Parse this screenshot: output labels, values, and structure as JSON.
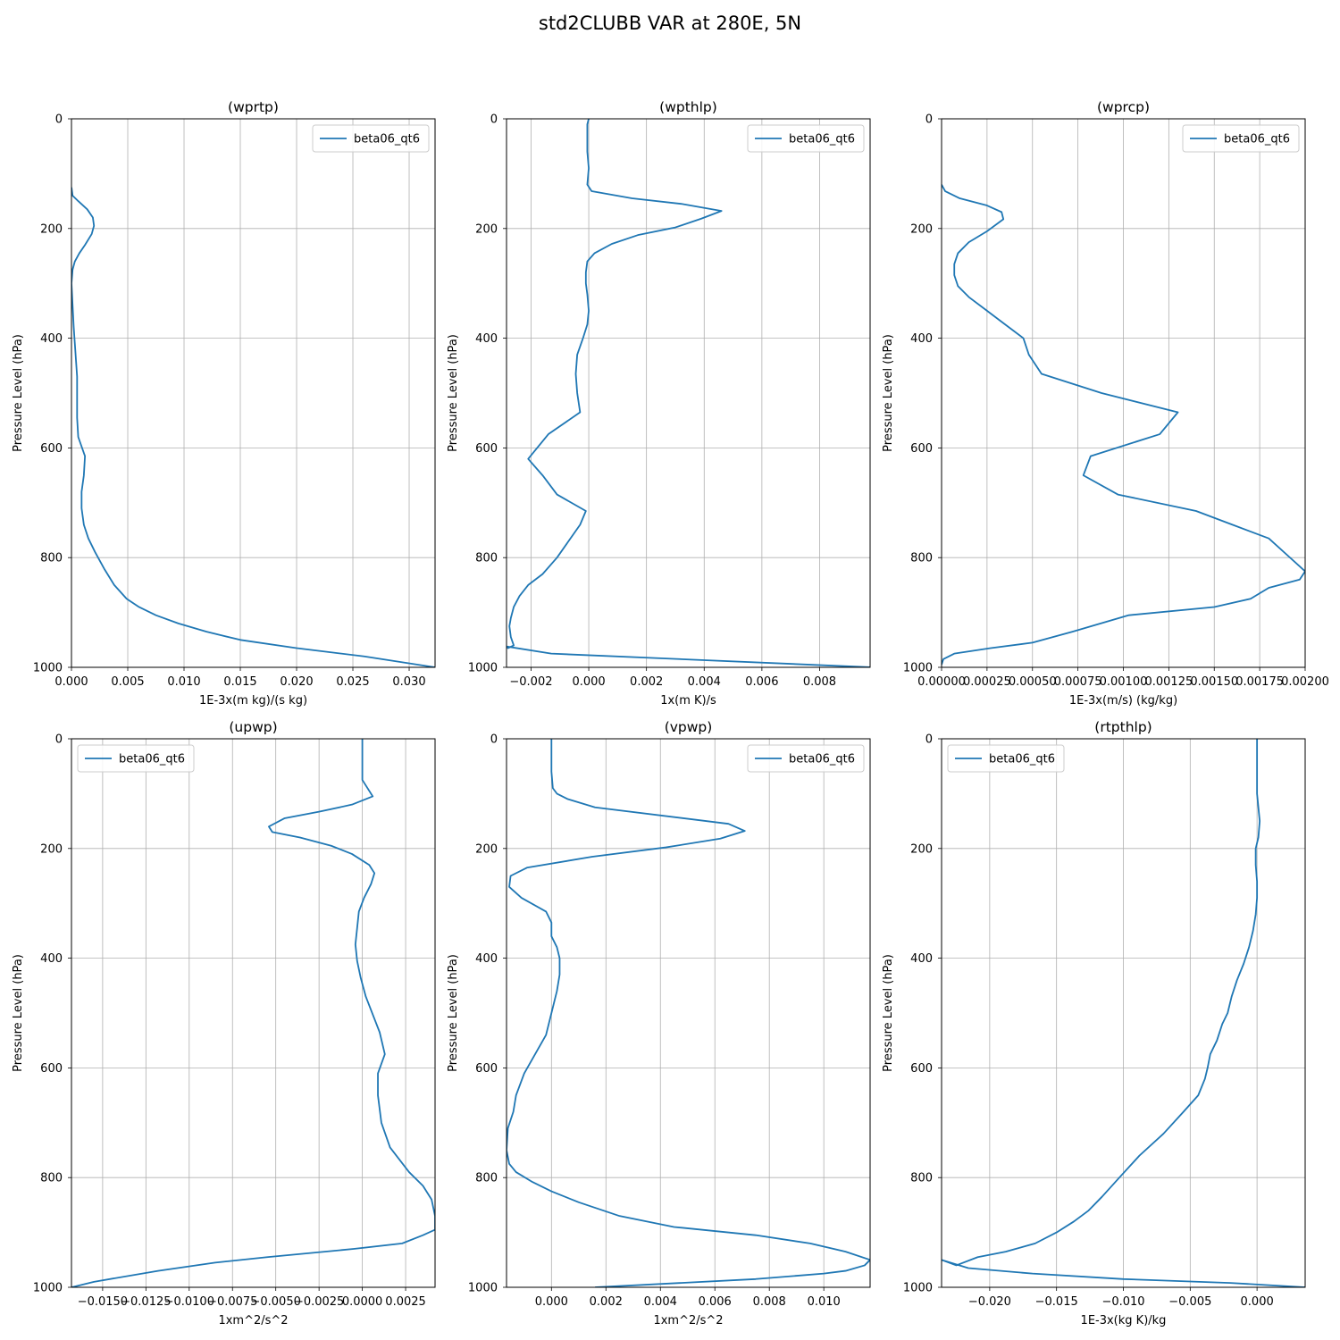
{
  "figure": {
    "title": "std2CLUBB VAR at 280E, 5N"
  },
  "chart_data": [
    {
      "type": "line",
      "title": "(wprtp)",
      "xlabel": "1E-3x(m kg)/(s kg)",
      "ylabel": "Pressure Level (hPa)",
      "xlim": [
        0,
        0.0323
      ],
      "ylim": [
        1000,
        0
      ],
      "xticks": [
        0,
        0.005,
        0.01,
        0.015,
        0.02,
        0.025,
        0.03
      ],
      "xtick_labels": [
        "0.000",
        "0.005",
        "0.010",
        "0.015",
        "0.020",
        "0.025",
        "0.030"
      ],
      "yticks": [
        0,
        200,
        400,
        600,
        800,
        1000
      ],
      "ytick_labels": [
        "0",
        "200",
        "400",
        "600",
        "800",
        "1000"
      ],
      "grid": true,
      "legend_position": "top-right",
      "series": [
        {
          "name": "beta06_qt6",
          "color": "#1f77b4",
          "x": [
            0.0,
            0.0001,
            0.0006,
            0.0014,
            0.0019,
            0.002,
            0.0018,
            0.0012,
            0.0007,
            0.0003,
            0.0001,
            0.0,
            0.0001,
            0.0002,
            0.0003,
            0.0004,
            0.0005,
            0.0005,
            0.0005,
            0.0005,
            0.0006,
            0.0012,
            0.0011,
            0.0009,
            0.0009,
            0.0011,
            0.0015,
            0.0021,
            0.0029,
            0.0038,
            0.0049,
            0.006,
            0.0075,
            0.0095,
            0.012,
            0.015,
            0.02,
            0.026,
            0.0323
          ],
          "y": [
            125,
            140,
            150,
            165,
            180,
            195,
            210,
            230,
            245,
            260,
            275,
            300,
            340,
            380,
            410,
            440,
            470,
            500,
            530,
            545,
            580,
            615,
            650,
            680,
            710,
            740,
            765,
            790,
            820,
            850,
            875,
            890,
            905,
            920,
            935,
            950,
            965,
            980,
            1000
          ]
        }
      ]
    },
    {
      "type": "line",
      "title": "(wpthlp)",
      "xlabel": "1x(m K)/s",
      "ylabel": "Pressure Level (hPa)",
      "xlim": [
        -0.00285,
        0.00975
      ],
      "ylim": [
        1000,
        0
      ],
      "xticks": [
        -0.002,
        0,
        0.002,
        0.004,
        0.006,
        0.008
      ],
      "xtick_labels": [
        "−0.002",
        "0.000",
        "0.002",
        "0.004",
        "0.006",
        "0.008"
      ],
      "yticks": [
        0,
        200,
        400,
        600,
        800,
        1000
      ],
      "ytick_labels": [
        "0",
        "200",
        "400",
        "600",
        "800",
        "1000"
      ],
      "grid": true,
      "legend_position": "top-right",
      "series": [
        {
          "name": "beta06_qt6",
          "color": "#1f77b4",
          "x": [
            0.0,
            -5e-05,
            -5e-05,
            -5e-05,
            0.0,
            -5e-05,
            0.0001,
            0.0015,
            0.0032,
            0.0046,
            0.0039,
            0.003,
            0.0017,
            0.0008,
            0.0002,
            -5e-05,
            -0.0001,
            -0.0001,
            -5e-05,
            0.0,
            -5e-05,
            -0.0002,
            -0.0004,
            -0.00045,
            -0.0004,
            -0.0003,
            -0.0014,
            -0.0021,
            -0.0016,
            -0.0011,
            -0.0001,
            -0.0003,
            -0.0007,
            -0.0011,
            -0.0016,
            -0.0021,
            -0.0024,
            -0.0026,
            -0.0027,
            -0.00275,
            -0.0027,
            -0.0026,
            -0.0028,
            -0.00285,
            -0.0013,
            0.0098
          ],
          "y": [
            0,
            10,
            30,
            60,
            90,
            120,
            132,
            145,
            155,
            168,
            182,
            198,
            212,
            228,
            245,
            260,
            280,
            300,
            320,
            350,
            375,
            400,
            430,
            465,
            500,
            535,
            575,
            620,
            650,
            685,
            715,
            740,
            770,
            800,
            830,
            850,
            870,
            890,
            910,
            925,
            945,
            960,
            965,
            962,
            975,
            1000
          ]
        }
      ]
    },
    {
      "type": "line",
      "title": "(wprcp)",
      "xlabel": "1E-3x(m/s) (kg/kg)",
      "ylabel": "Pressure Level (hPa)",
      "xlim": [
        0,
        0.002
      ],
      "ylim": [
        1000,
        0
      ],
      "xticks": [
        0,
        0.00025,
        0.0005,
        0.00075,
        0.001,
        0.00125,
        0.0015,
        0.00175,
        0.002
      ],
      "xtick_labels": [
        "0.00000",
        "0.00025",
        "0.00050",
        "0.00075",
        "0.00100",
        "0.00125",
        "0.00150",
        "0.00175",
        "0.00200"
      ],
      "yticks": [
        0,
        200,
        400,
        600,
        800,
        1000
      ],
      "ytick_labels": [
        "0",
        "200",
        "400",
        "600",
        "800",
        "1000"
      ],
      "grid": true,
      "legend_position": "top-right",
      "series": [
        {
          "name": "beta06_qt6",
          "color": "#1f77b4",
          "x": [
            0.0,
            2e-05,
            0.0001,
            0.00025,
            0.00033,
            0.00034,
            0.00025,
            0.00015,
            9e-05,
            7e-05,
            7e-05,
            9e-05,
            0.00015,
            0.00025,
            0.00035,
            0.00045,
            0.00048,
            0.00055,
            0.00088,
            0.0013,
            0.0012,
            0.00082,
            0.00078,
            0.00097,
            0.0014,
            0.0016,
            0.0018,
            0.0019,
            0.002,
            0.00197,
            0.0018,
            0.0017,
            0.0015,
            0.00103,
            0.00072,
            0.0005,
            0.00027,
            7e-05,
            1e-05,
            0.0
          ],
          "y": [
            120,
            132,
            145,
            158,
            170,
            183,
            205,
            225,
            245,
            265,
            285,
            305,
            325,
            350,
            375,
            400,
            430,
            465,
            500,
            535,
            575,
            615,
            650,
            685,
            715,
            740,
            765,
            795,
            825,
            840,
            855,
            875,
            890,
            905,
            935,
            955,
            965,
            975,
            985,
            995
          ]
        }
      ]
    },
    {
      "type": "line",
      "title": "(upwp)",
      "xlabel": "1xm^2/s^2",
      "ylabel": "Pressure Level (hPa)",
      "xlim": [
        -0.0168,
        0.0042
      ],
      "ylim": [
        1000,
        0
      ],
      "xticks": [
        -0.015,
        -0.0125,
        -0.01,
        -0.0075,
        -0.005,
        -0.0025,
        0,
        0.0025
      ],
      "xtick_labels": [
        "−0.0150",
        "−0.0125",
        "−0.0100",
        "−0.0075",
        "−0.0050",
        "−0.0025",
        "0.0000",
        "0.0025"
      ],
      "yticks": [
        0,
        200,
        400,
        600,
        800,
        1000
      ],
      "ytick_labels": [
        "0",
        "200",
        "400",
        "600",
        "800",
        "1000"
      ],
      "grid": true,
      "legend_position": "top-left",
      "series": [
        {
          "name": "beta06_qt6",
          "color": "#1f77b4",
          "x": [
            0.0,
            0.0,
            0.0,
            0.0,
            0.0002,
            0.0006,
            -0.0006,
            -0.0025,
            -0.0045,
            -0.0054,
            -0.0052,
            -0.0036,
            -0.0018,
            -0.0006,
            0.0004,
            0.0007,
            0.0005,
            0.0001,
            -0.0002,
            -0.0003,
            -0.0004,
            -0.0003,
            -0.0001,
            0.0002,
            0.001,
            0.0013,
            0.0009,
            0.0009,
            0.0011,
            0.0016,
            0.0027,
            0.0035,
            0.004,
            0.0042,
            0.0042,
            0.0035,
            0.0023,
            -0.0005,
            -0.0055,
            -0.0085,
            -0.0118,
            -0.0155,
            -0.0168
          ],
          "y": [
            0,
            20,
            50,
            75,
            85,
            105,
            120,
            133,
            145,
            160,
            170,
            180,
            195,
            210,
            230,
            245,
            265,
            290,
            315,
            345,
            375,
            405,
            435,
            470,
            535,
            575,
            610,
            650,
            700,
            745,
            790,
            815,
            840,
            870,
            895,
            905,
            920,
            930,
            945,
            955,
            970,
            990,
            1000
          ]
        }
      ]
    },
    {
      "type": "line",
      "title": "(vpwp)",
      "xlabel": "1xm^2/s^2",
      "ylabel": "Pressure Level (hPa)",
      "xlim": [
        -0.00165,
        0.0117
      ],
      "ylim": [
        1000,
        0
      ],
      "xticks": [
        0,
        0.002,
        0.004,
        0.006,
        0.008,
        0.01
      ],
      "xtick_labels": [
        "0.000",
        "0.002",
        "0.004",
        "0.006",
        "0.008",
        "0.010"
      ],
      "yticks": [
        0,
        200,
        400,
        600,
        800,
        1000
      ],
      "ytick_labels": [
        "0",
        "200",
        "400",
        "600",
        "800",
        "1000"
      ],
      "grid": true,
      "legend_position": "top-right",
      "series": [
        {
          "name": "beta06_qt6",
          "color": "#1f77b4",
          "x": [
            0.0,
            0.0,
            0.0,
            5e-05,
            0.0002,
            0.0006,
            0.0016,
            0.0065,
            0.0071,
            0.0062,
            0.0042,
            0.0015,
            -0.0009,
            -0.0015,
            -0.00155,
            -0.0011,
            -0.0002,
            0.0,
            0.0,
            0.0002,
            0.0003,
            0.0003,
            0.0002,
            0.0,
            -0.0002,
            -0.0006,
            -0.001,
            -0.0013,
            -0.0014,
            -0.0016,
            -0.00165,
            -0.00155,
            -0.0013,
            -0.0007,
            0.0,
            0.001,
            0.0025,
            0.0045,
            0.0075,
            0.0095,
            0.0108,
            0.0117,
            0.0115,
            0.0108,
            0.01,
            0.0075,
            0.0016
          ],
          "y": [
            0,
            30,
            60,
            90,
            100,
            110,
            125,
            155,
            168,
            182,
            198,
            215,
            235,
            250,
            270,
            290,
            315,
            335,
            360,
            380,
            400,
            430,
            460,
            500,
            540,
            575,
            610,
            650,
            680,
            710,
            750,
            775,
            790,
            808,
            825,
            845,
            870,
            890,
            905,
            920,
            935,
            950,
            960,
            970,
            975,
            985,
            1000
          ]
        }
      ]
    },
    {
      "type": "line",
      "title": "(rtpthlp)",
      "xlabel": "1E-3x(kg K)/kg",
      "ylabel": "Pressure Level (hPa)",
      "xlim": [
        -0.0236,
        0.0036
      ],
      "ylim": [
        1000,
        0
      ],
      "xticks": [
        -0.02,
        -0.015,
        -0.01,
        -0.005,
        0
      ],
      "xtick_labels": [
        "−0.020",
        "−0.015",
        "−0.010",
        "−0.005",
        "0.000"
      ],
      "yticks": [
        0,
        200,
        400,
        600,
        800,
        1000
      ],
      "ytick_labels": [
        "0",
        "200",
        "400",
        "600",
        "800",
        "1000"
      ],
      "grid": true,
      "legend_position": "top-left",
      "series": [
        {
          "name": "beta06_qt6",
          "color": "#1f77b4",
          "x": [
            0.0,
            0.0,
            0.0,
            0.0,
            0.0002,
            0.0001,
            -0.0001,
            -0.0001,
            0.0,
            0.0,
            -0.0001,
            -0.0003,
            -0.0006,
            -0.001,
            -0.0015,
            -0.0019,
            -0.0022,
            -0.0026,
            -0.003,
            -0.0035,
            -0.0037,
            -0.0039,
            -0.0044,
            -0.0055,
            -0.007,
            -0.0088,
            -0.0103,
            -0.0116,
            -0.0126,
            -0.0137,
            -0.015,
            -0.0166,
            -0.0188,
            -0.0209,
            -0.0225,
            -0.0236,
            -0.0216,
            -0.0168,
            -0.01,
            -0.002,
            0.0036
          ],
          "y": [
            0,
            30,
            60,
            100,
            150,
            180,
            200,
            230,
            260,
            290,
            320,
            350,
            380,
            410,
            440,
            470,
            500,
            520,
            550,
            575,
            600,
            620,
            650,
            680,
            720,
            760,
            800,
            835,
            860,
            880,
            900,
            920,
            935,
            945,
            960,
            950,
            965,
            975,
            985,
            992,
            1000
          ]
        }
      ]
    }
  ]
}
